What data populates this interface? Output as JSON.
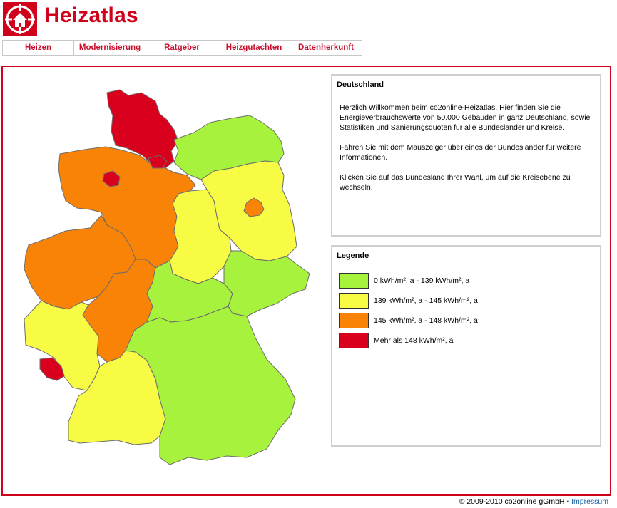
{
  "header": {
    "title": "Heizatlas",
    "logo_icon": "house-in-circle-icon"
  },
  "nav": {
    "items": [
      {
        "label": "Heizen"
      },
      {
        "label": "Modernisierung"
      },
      {
        "label": "Ratgeber"
      },
      {
        "label": "Heizgutachten"
      },
      {
        "label": "Datenherkunft"
      }
    ]
  },
  "info": {
    "title": "Deutschland",
    "paragraphs": [
      "Herzlich Willkommen beim co2online-Heizatlas. Hier finden Sie die Energieverbrauchswerte von 50.000 Gebäuden in ganz Deutschland, sowie Statistiken und Sanierungsquoten für alle Bundesländer und Kreise.",
      "Fahren Sie mit dem Mauszeiger über eines der Bundesländer für weitere Informationen.",
      "Klicken Sie auf das Bundesland Ihrer Wahl, um auf die Kreisebene zu wechseln."
    ]
  },
  "legend": {
    "title": "Legende",
    "items": [
      {
        "label": "0 kWh/m², a - 139 kWh/m², a",
        "color": "#a6f23c"
      },
      {
        "label": "139 kWh/m², a - 145 kWh/m², a",
        "color": "#f7fb44"
      },
      {
        "label": "145 kWh/m², a - 148 kWh/m², a",
        "color": "#f98306"
      },
      {
        "label": "Mehr als 148 kWh/m², a",
        "color": "#d9001d"
      }
    ]
  },
  "map": {
    "states": [
      {
        "id": "schleswig-holstein",
        "category": 3
      },
      {
        "id": "hamburg",
        "category": 3
      },
      {
        "id": "mecklenburg-vorpommern",
        "category": 0
      },
      {
        "id": "niedersachsen",
        "category": 2
      },
      {
        "id": "bremen",
        "category": 3
      },
      {
        "id": "brandenburg",
        "category": 1
      },
      {
        "id": "berlin",
        "category": 2
      },
      {
        "id": "sachsen-anhalt",
        "category": 1
      },
      {
        "id": "nordrhein-westfalen",
        "category": 2
      },
      {
        "id": "hessen",
        "category": 2
      },
      {
        "id": "thueringen",
        "category": 0
      },
      {
        "id": "sachsen",
        "category": 0
      },
      {
        "id": "rheinland-pfalz",
        "category": 1
      },
      {
        "id": "saarland",
        "category": 3
      },
      {
        "id": "baden-wuerttemberg",
        "category": 1
      },
      {
        "id": "bayern",
        "category": 0
      }
    ]
  },
  "footer": {
    "copyright": "© 2009-2010 co2online gGmbH",
    "separator": "•",
    "link": "Impressum"
  }
}
